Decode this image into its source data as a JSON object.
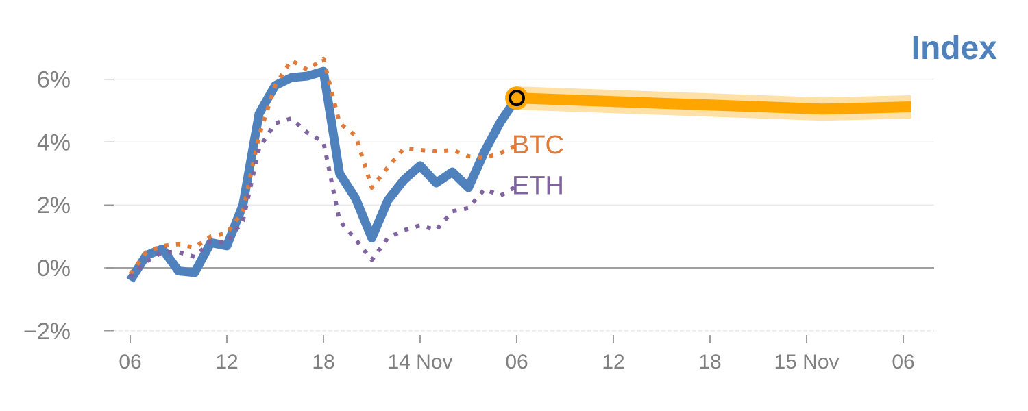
{
  "chart_data": {
    "type": "line",
    "title": "Index",
    "xlabel": "",
    "ylabel": "",
    "ylim": [
      -2,
      6.9
    ],
    "xlim_hours": [
      -1.5,
      49.5
    ],
    "grid": true,
    "yticks": [
      {
        "v": 6,
        "label": "6%"
      },
      {
        "v": 4,
        "label": "4%"
      },
      {
        "v": 2,
        "label": "2%"
      },
      {
        "v": 0,
        "label": "0%"
      },
      {
        "v": -2,
        "label": "−2%"
      }
    ],
    "xticks": [
      {
        "h": 0,
        "label": "06"
      },
      {
        "h": 6,
        "label": "12"
      },
      {
        "h": 12,
        "label": "18"
      },
      {
        "h": 18,
        "label": "14 Nov"
      },
      {
        "h": 24,
        "label": "06"
      },
      {
        "h": 30,
        "label": "12"
      },
      {
        "h": 36,
        "label": "18"
      },
      {
        "h": 42,
        "label": "15 Nov"
      },
      {
        "h": 48,
        "label": "06"
      }
    ],
    "series": [
      {
        "name": "Index",
        "color": "#4f81bd",
        "style": "solid",
        "values": [
          -0.4,
          0.4,
          0.6,
          -0.1,
          -0.15,
          0.8,
          0.7,
          2.0,
          4.9,
          5.8,
          6.05,
          6.1,
          6.25,
          3.0,
          2.2,
          0.95,
          2.15,
          2.8,
          3.25,
          2.7,
          3.05,
          2.55,
          3.7,
          4.65,
          5.4
        ]
      },
      {
        "name": "BTC",
        "color": "#e07b39",
        "style": "dotted",
        "values": [
          -0.2,
          0.5,
          0.7,
          0.75,
          0.65,
          1.0,
          1.1,
          1.8,
          4.2,
          5.8,
          6.6,
          6.3,
          6.65,
          4.6,
          4.2,
          2.55,
          3.2,
          3.8,
          3.75,
          3.7,
          3.75,
          3.55,
          3.5,
          3.65,
          3.9
        ]
      },
      {
        "name": "ETH",
        "color": "#8064a2",
        "style": "dotted",
        "values": [
          -0.3,
          0.2,
          0.5,
          0.5,
          0.35,
          0.85,
          0.8,
          1.5,
          3.8,
          4.6,
          4.75,
          4.3,
          4.0,
          1.5,
          0.9,
          0.25,
          0.95,
          1.2,
          1.35,
          1.2,
          1.8,
          1.9,
          2.5,
          2.3,
          2.6
        ]
      }
    ],
    "forecast": {
      "color": "#ffa500",
      "points": [
        {
          "h": 24,
          "v": 5.4
        },
        {
          "h": 43,
          "v": 5.05
        },
        {
          "h": 48.5,
          "v": 5.12
        }
      ]
    },
    "current_marker": {
      "h": 24,
      "v": 5.4
    }
  }
}
